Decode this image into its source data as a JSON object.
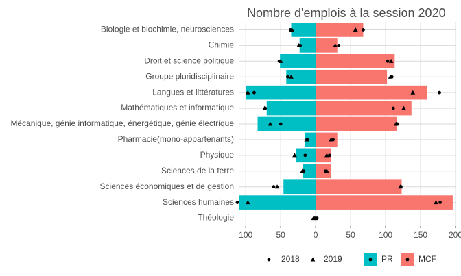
{
  "chart_data": {
    "type": "bar",
    "orientation": "horizontal-diverging",
    "title": "Nombre d'emplois à la session 2020",
    "xlabel": "",
    "ylabel": "",
    "xlim": [
      -110,
      200
    ],
    "x_ticks": [
      -100,
      -50,
      0,
      50,
      100,
      150,
      200
    ],
    "x_tick_labels": [
      "100",
      "50",
      "0",
      "50",
      "100",
      "150",
      "200"
    ],
    "categories": [
      "Biologie et biochimie, neurosciences",
      "Chimie",
      "Droit et science politique",
      "Groupe pluridisciplinaire",
      "Langues et littératures",
      "Mathématiques et informatique",
      "Mécanique, génie informatique, énergétique, génie électrique",
      "Pharmacie(mono-appartenants)",
      "Physique",
      "Sciences de la terre",
      "Sciences économiques et de gestion",
      "Sciences humaines",
      "Théologie"
    ],
    "series": [
      {
        "name": "PR",
        "color": "#00BFC4",
        "values": [
          35,
          23,
          51,
          42,
          100,
          70,
          83,
          15,
          28,
          18,
          46,
          110,
          0
        ],
        "points_2018": [
          36,
          22,
          52,
          40,
          88,
          72,
          50,
          12,
          15,
          17,
          60,
          112,
          2
        ],
        "points_2019": [
          34,
          24,
          50,
          35,
          97,
          73,
          65,
          13,
          30,
          19,
          55,
          97,
          3
        ]
      },
      {
        "name": "MCF",
        "color": "#F8766D",
        "values": [
          68,
          31,
          113,
          102,
          159,
          137,
          116,
          31,
          22,
          22,
          123,
          196,
          0
        ],
        "points_2018": [
          68,
          33,
          103,
          109,
          177,
          111,
          117,
          25,
          20,
          14,
          122,
          178,
          2
        ],
        "points_2019": [
          57,
          28,
          108,
          107,
          139,
          126,
          115,
          22,
          16,
          16,
          121,
          172,
          0
        ]
      }
    ],
    "legend": {
      "position": "bottom",
      "year_entries": [
        "2018",
        "2019"
      ],
      "series_entries": [
        "PR",
        "MCF"
      ]
    },
    "grid": true
  }
}
